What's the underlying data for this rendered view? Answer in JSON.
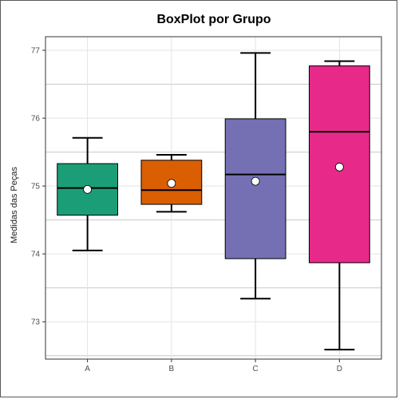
{
  "chart_data": {
    "type": "boxplot",
    "title": "BoxPlot por Grupo",
    "xlabel": "",
    "ylabel": "Medidas das Peças",
    "categories": [
      "A",
      "B",
      "C",
      "D"
    ],
    "y_ticks": [
      73,
      74,
      75,
      76,
      77
    ],
    "y_tick_labels": [
      "73",
      "74",
      "75",
      "76",
      "77"
    ],
    "ylim": [
      72.45,
      77.2
    ],
    "grid": true,
    "boxes": [
      {
        "name": "A",
        "whisker_low": 74.05,
        "q1": 74.57,
        "median": 74.97,
        "q3": 75.33,
        "whisker_high": 75.71,
        "mean": 74.95,
        "color": "#1B9E77"
      },
      {
        "name": "B",
        "whisker_low": 74.62,
        "q1": 74.73,
        "median": 74.94,
        "q3": 75.38,
        "whisker_high": 75.46,
        "mean": 75.04,
        "color": "#D95F02"
      },
      {
        "name": "C",
        "whisker_low": 73.34,
        "q1": 73.93,
        "median": 75.17,
        "q3": 75.99,
        "whisker_high": 76.96,
        "mean": 75.07,
        "color": "#7570B3"
      },
      {
        "name": "D",
        "whisker_low": 72.59,
        "q1": 73.87,
        "median": 75.8,
        "q3": 76.77,
        "whisker_high": 76.84,
        "mean": 75.28,
        "color": "#E7298A"
      }
    ]
  }
}
